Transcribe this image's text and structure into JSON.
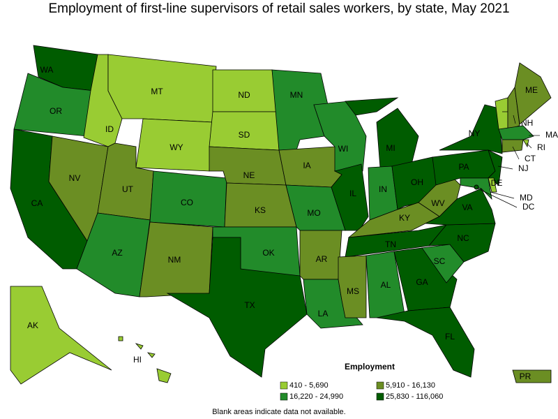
{
  "title": "Employment of first-line supervisors of retail sales workers, by state, May 2021",
  "legend": {
    "title": "Employment",
    "items": [
      {
        "label": "410 - 5,690",
        "color": "#99cc33"
      },
      {
        "label": "5,910 - 16,130",
        "color": "#6b8e23"
      },
      {
        "label": "16,220 - 24,990",
        "color": "#228b2a"
      },
      {
        "label": "25,830 - 116,060",
        "color": "#005c00"
      }
    ]
  },
  "states": [
    {
      "abbr": "WA",
      "level": 3
    },
    {
      "abbr": "OR",
      "level": 2
    },
    {
      "abbr": "CA",
      "level": 3
    },
    {
      "abbr": "NV",
      "level": 1
    },
    {
      "abbr": "ID",
      "level": 0
    },
    {
      "abbr": "MT",
      "level": 0
    },
    {
      "abbr": "WY",
      "level": 0
    },
    {
      "abbr": "UT",
      "level": 1
    },
    {
      "abbr": "AZ",
      "level": 2
    },
    {
      "abbr": "CO",
      "level": 2
    },
    {
      "abbr": "NM",
      "level": 1
    },
    {
      "abbr": "ND",
      "level": 0
    },
    {
      "abbr": "SD",
      "level": 0
    },
    {
      "abbr": "NE",
      "level": 1
    },
    {
      "abbr": "KS",
      "level": 1
    },
    {
      "abbr": "OK",
      "level": 2
    },
    {
      "abbr": "TX",
      "level": 3
    },
    {
      "abbr": "MN",
      "level": 2
    },
    {
      "abbr": "IA",
      "level": 1
    },
    {
      "abbr": "MO",
      "level": 2
    },
    {
      "abbr": "AR",
      "level": 1
    },
    {
      "abbr": "LA",
      "level": 2
    },
    {
      "abbr": "WI",
      "level": 2
    },
    {
      "abbr": "IL",
      "level": 3
    },
    {
      "abbr": "MI",
      "level": 3
    },
    {
      "abbr": "IN",
      "level": 2
    },
    {
      "abbr": "OH",
      "level": 3
    },
    {
      "abbr": "KY",
      "level": 1
    },
    {
      "abbr": "TN",
      "level": 3
    },
    {
      "abbr": "MS",
      "level": 1
    },
    {
      "abbr": "AL",
      "level": 2
    },
    {
      "abbr": "GA",
      "level": 3
    },
    {
      "abbr": "FL",
      "level": 3
    },
    {
      "abbr": "SC",
      "level": 2
    },
    {
      "abbr": "NC",
      "level": 3
    },
    {
      "abbr": "VA",
      "level": 3
    },
    {
      "abbr": "WV",
      "level": 1
    },
    {
      "abbr": "PA",
      "level": 3
    },
    {
      "abbr": "NY",
      "level": 3
    },
    {
      "abbr": "VT",
      "level": 0
    },
    {
      "abbr": "NH",
      "level": 1
    },
    {
      "abbr": "ME",
      "level": 1
    },
    {
      "abbr": "MA",
      "level": 2
    },
    {
      "abbr": "RI",
      "level": 0
    },
    {
      "abbr": "CT",
      "level": 1
    },
    {
      "abbr": "NJ",
      "level": 3
    },
    {
      "abbr": "DE",
      "level": 0
    },
    {
      "abbr": "MD",
      "level": 2
    },
    {
      "abbr": "DC",
      "level": 3
    },
    {
      "abbr": "AK",
      "level": 0
    },
    {
      "abbr": "HI",
      "level": 0
    },
    {
      "abbr": "PR",
      "level": 1
    }
  ],
  "footnote": "Blank areas indicate data not available."
}
